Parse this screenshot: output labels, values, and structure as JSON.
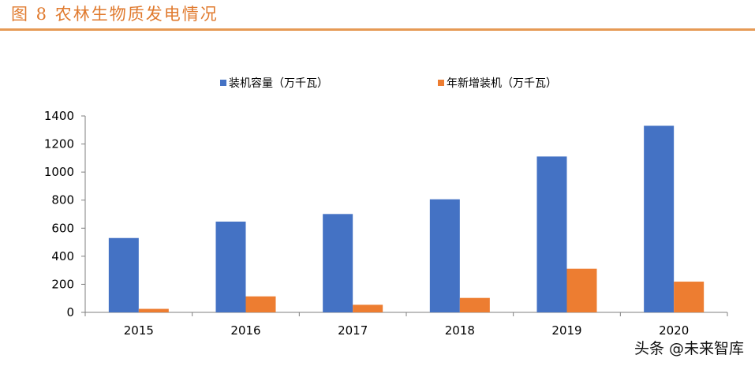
{
  "figure": {
    "title": "图 8  农林生物质发电情况",
    "watermark": "头条 @未来智库"
  },
  "colors": {
    "title": "#e07a2e",
    "rule": "#e69a55",
    "series1": "#4472c4",
    "series2": "#ed7d31"
  },
  "chart_data": {
    "type": "bar",
    "categories": [
      "2015",
      "2016",
      "2017",
      "2018",
      "2019",
      "2020"
    ],
    "series": [
      {
        "name": "装机容量（万千瓦）",
        "values": [
          530,
          647,
          701,
          806,
          1111,
          1330
        ]
      },
      {
        "name": "年新增装机（万千瓦）",
        "values": [
          25,
          114,
          54,
          103,
          311,
          219
        ]
      }
    ],
    "ylim": [
      0,
      1400
    ],
    "yticks": [
      "0",
      "200",
      "400",
      "600",
      "800",
      "1000",
      "1200",
      "1400"
    ],
    "legend": "top-center",
    "grid": false
  }
}
